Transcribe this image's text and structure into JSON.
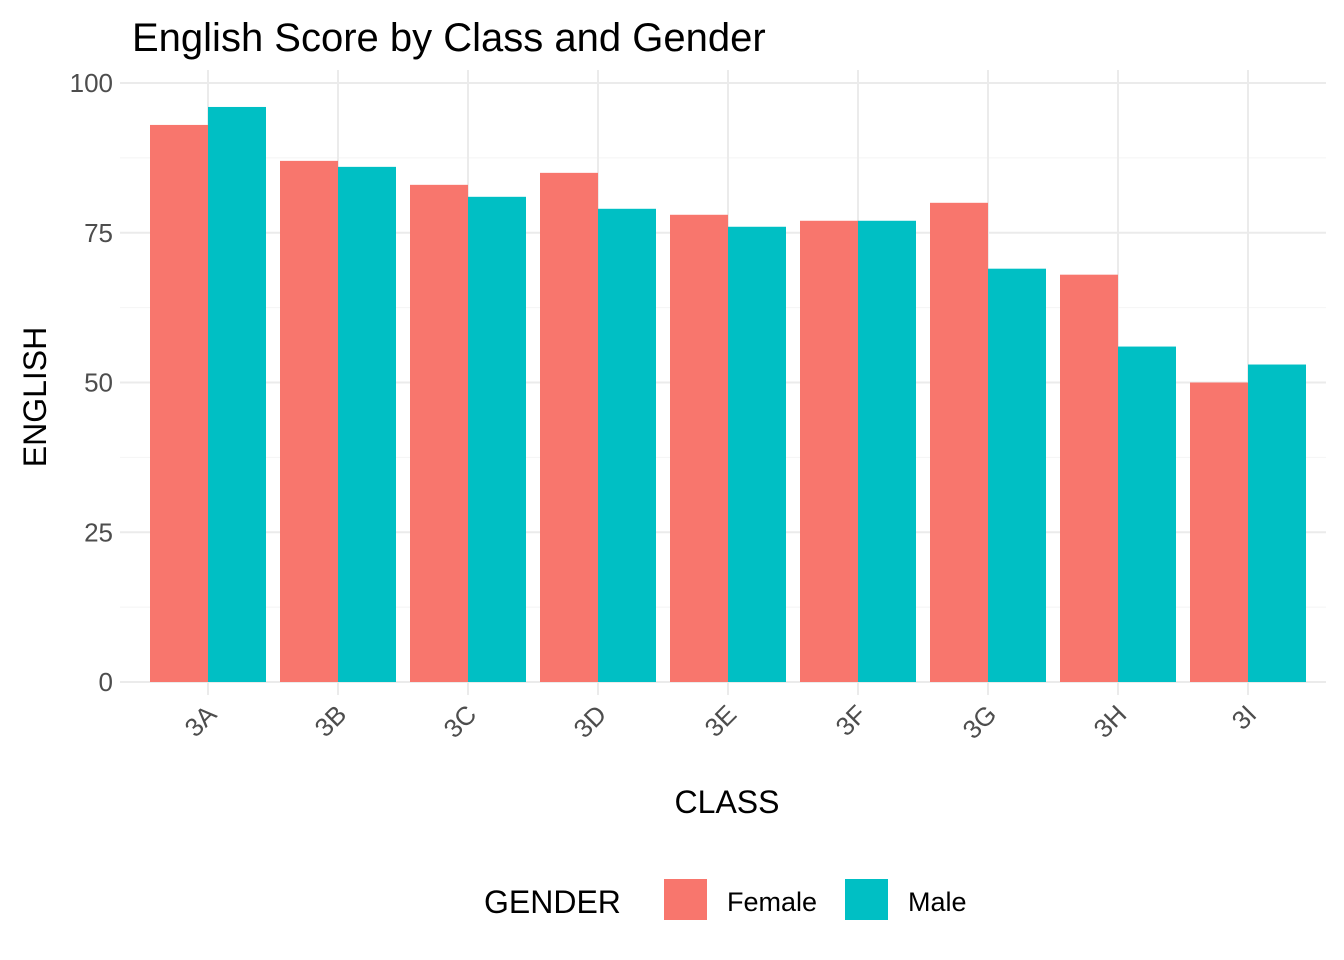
{
  "chart_data": {
    "type": "bar",
    "title": "English Score by Class and Gender",
    "xlabel": "CLASS",
    "ylabel": "ENGLISH",
    "categories": [
      "3A",
      "3B",
      "3C",
      "3D",
      "3E",
      "3F",
      "3G",
      "3H",
      "3I"
    ],
    "series": [
      {
        "name": "Female",
        "color": "#F8766D",
        "values": [
          93,
          87,
          83,
          85,
          78,
          77,
          80,
          68,
          50
        ]
      },
      {
        "name": "Male",
        "color": "#00BFC4",
        "values": [
          96,
          86,
          81,
          79,
          76,
          77,
          69,
          56,
          53
        ]
      }
    ],
    "ylim": [
      0,
      100
    ],
    "yticks": [
      0,
      25,
      50,
      75,
      100
    ],
    "ytick_labels": [
      "0",
      "25",
      "50",
      "75",
      "100"
    ],
    "grid": true,
    "legend": {
      "title": "GENDER",
      "position": "bottom"
    }
  }
}
